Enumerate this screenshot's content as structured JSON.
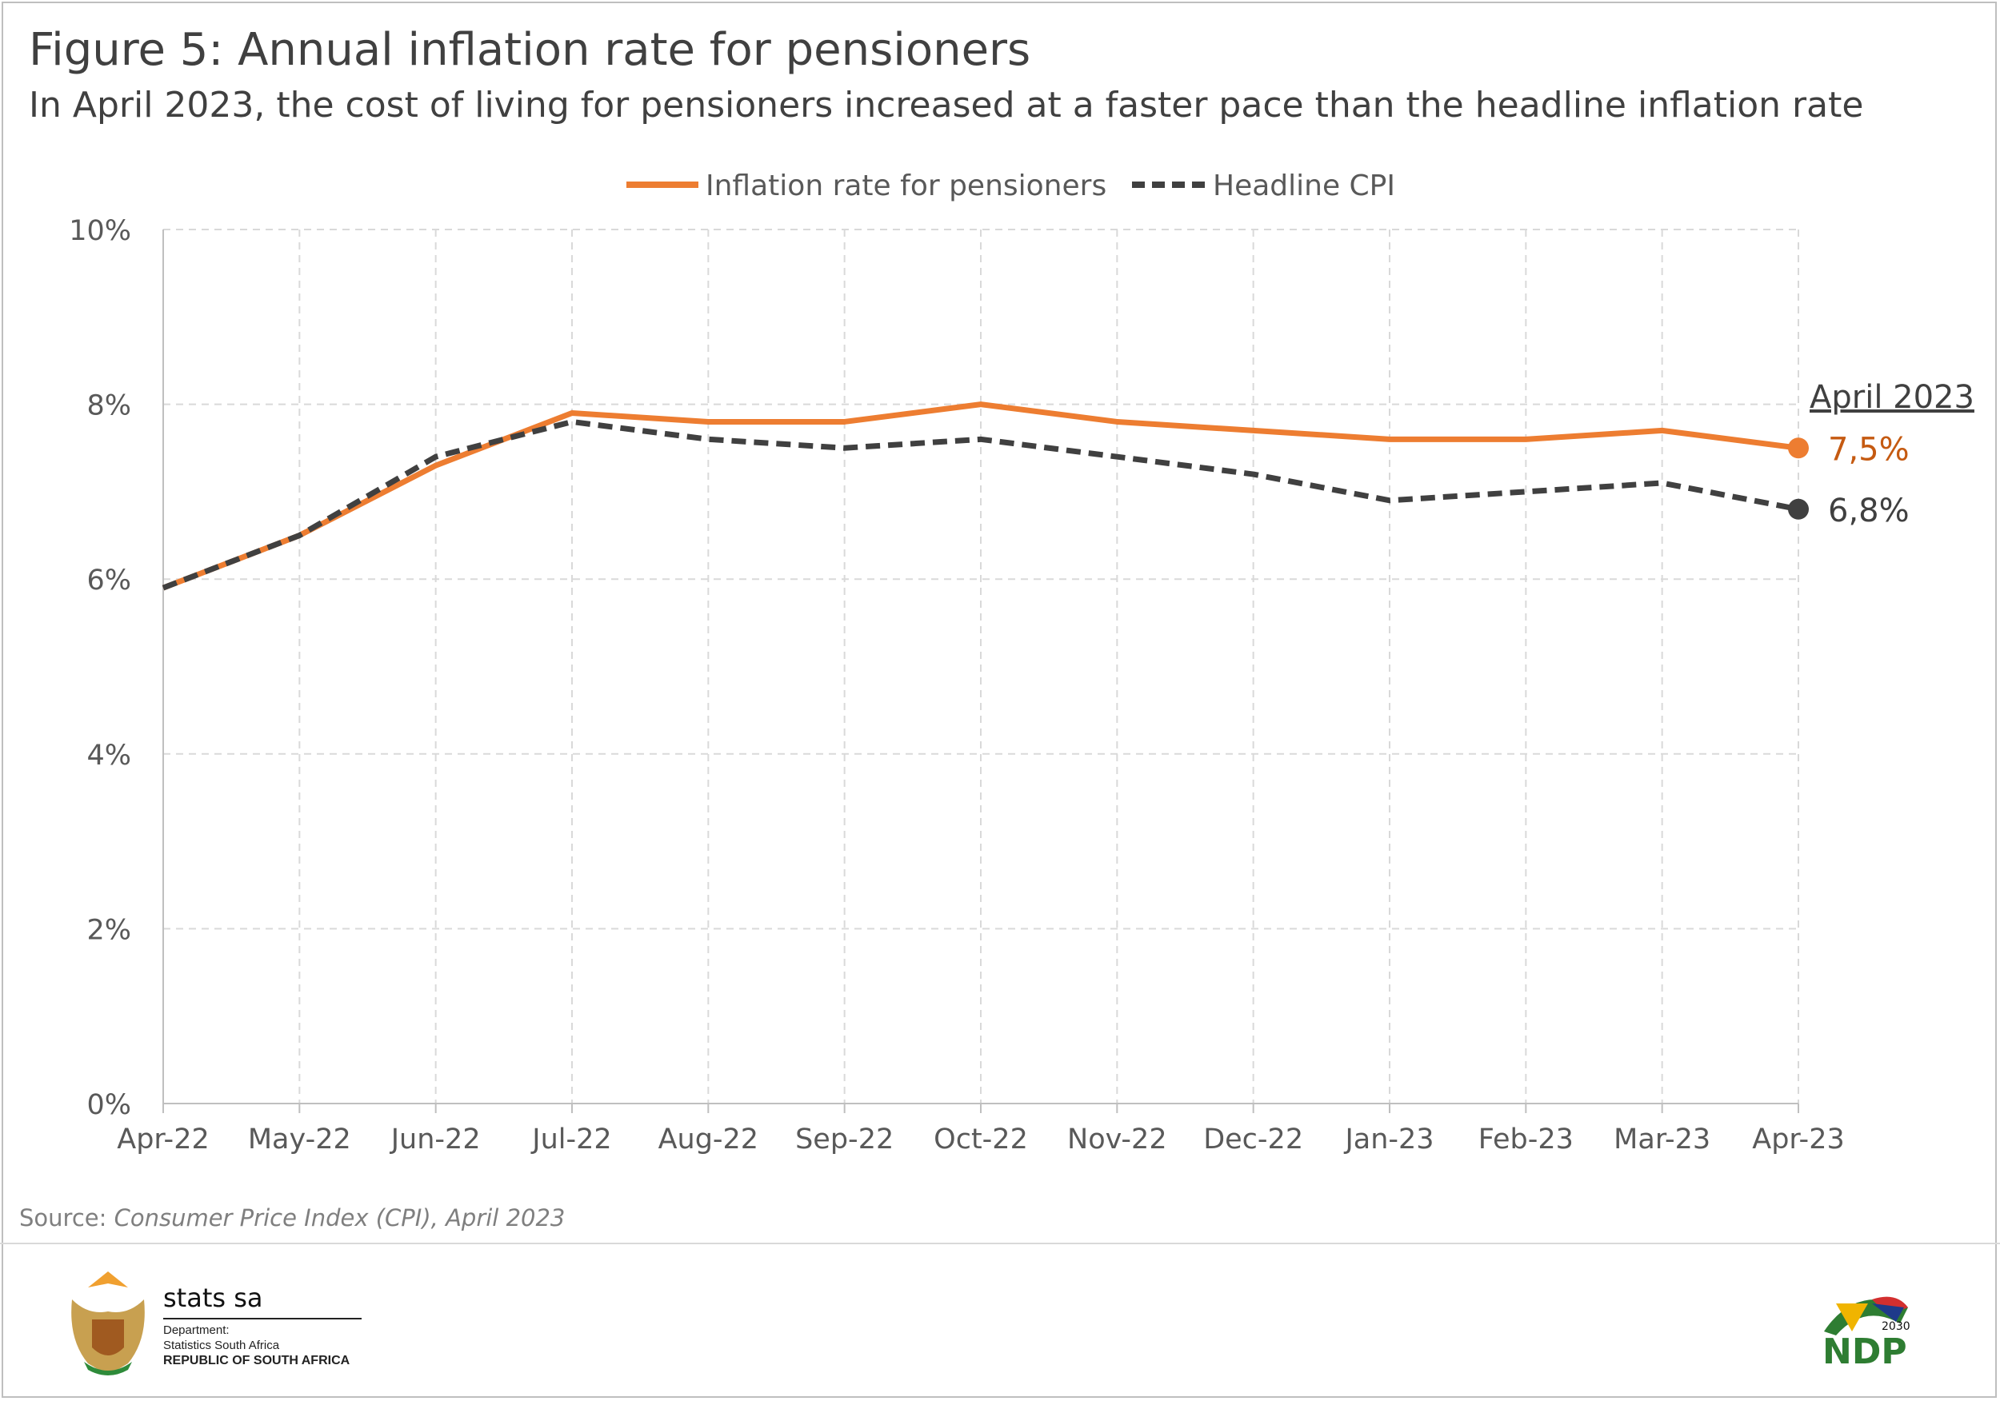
{
  "header": {
    "title": "Figure 5: Annual inflation rate for pensioners",
    "subtitle": "In April 2023, the cost of living for pensioners increased at a faster pace than the headline inflation rate"
  },
  "chart_data": {
    "type": "line",
    "title": "Figure 5: Annual inflation rate for pensioners",
    "xlabel": "",
    "ylabel": "",
    "ylim": [
      0,
      10
    ],
    "yticks": [
      "0%",
      "2%",
      "4%",
      "6%",
      "8%",
      "10%"
    ],
    "ytick_values": [
      0,
      2,
      4,
      6,
      8,
      10
    ],
    "grid": true,
    "legend_position": "top-center",
    "categories": [
      "Apr-22",
      "May-22",
      "Jun-22",
      "Jul-22",
      "Aug-22",
      "Sep-22",
      "Oct-22",
      "Nov-22",
      "Dec-22",
      "Jan-23",
      "Feb-23",
      "Mar-23",
      "Apr-23"
    ],
    "series": [
      {
        "name": "Inflation rate for pensioners",
        "color": "#ed7d31",
        "style": "solid",
        "values": [
          5.9,
          6.5,
          7.3,
          7.9,
          7.8,
          7.8,
          8.0,
          7.8,
          7.7,
          7.6,
          7.6,
          7.7,
          7.5
        ]
      },
      {
        "name": "Headline CPI",
        "color": "#595959",
        "style": "dashed",
        "values": [
          5.9,
          6.5,
          7.4,
          7.8,
          7.6,
          7.5,
          7.6,
          7.4,
          7.2,
          6.9,
          7.0,
          7.1,
          6.8
        ]
      }
    ],
    "annotations": {
      "heading": "April 2023",
      "labels": [
        "7,5%",
        "6,8%"
      ]
    }
  },
  "source": {
    "prefix": "Source: ",
    "text": "Consumer Price Index (CPI), April 2023"
  },
  "footer": {
    "org_name": "stats sa",
    "dept_line1": "Department:",
    "dept_line2": "Statistics South Africa",
    "dept_line3": "REPUBLIC OF SOUTH AFRICA",
    "ndp_text": "NDP",
    "ndp_year": "2030"
  }
}
